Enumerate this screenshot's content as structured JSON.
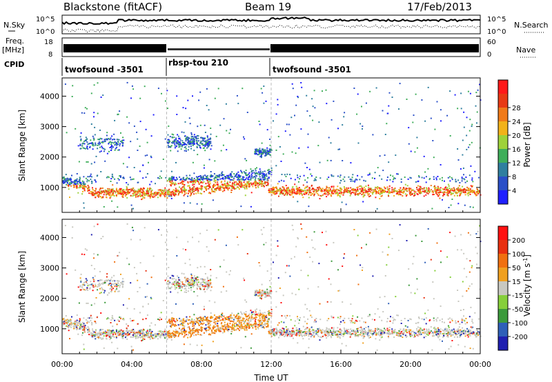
{
  "header": {
    "title": "Blackstone (fitACF)",
    "beam": "Beam 19",
    "date": "17/Feb/2013"
  },
  "side_labels": {
    "nsky": "N.Sky",
    "nsearch": "N.Search",
    "freq": "Freq.",
    "freq_unit": "[MHz]",
    "nave": "Nave",
    "cpid": "CPID"
  },
  "noise_panel": {
    "left_ticks": [
      "10^5",
      "10^0"
    ],
    "right_ticks": [
      "10^5",
      "10^0"
    ]
  },
  "freq_panel": {
    "left_ticks": [
      "18",
      "8"
    ],
    "right_ticks": [
      "60",
      "0"
    ]
  },
  "cpid_segments": [
    {
      "label": "twofsound -3501",
      "start_hour": 0
    },
    {
      "label": "rbsp-tou 210",
      "start_hour": 6
    },
    {
      "label": "twofsound -3501",
      "start_hour": 12
    }
  ],
  "chart_data": [
    {
      "type": "heatmap",
      "name": "power",
      "ylabel": "Slant Range [km]",
      "xlabel": "",
      "x_range_hours": [
        0,
        24
      ],
      "ylim": [
        180,
        4600
      ],
      "y_ticks": [
        1000,
        2000,
        3000,
        4000
      ],
      "colorbar_label": "Power [dB]",
      "colorbar_ticks": [
        "4",
        "8",
        "12",
        "16",
        "20",
        "24",
        "28"
      ],
      "colorbar_colors": [
        "#1f1fff",
        "#2a4fc8",
        "#2f7f9f",
        "#3fae5a",
        "#9ed23a",
        "#f2b21a",
        "#f07a18",
        "#e83a14",
        "#ff1a1a"
      ]
    },
    {
      "type": "heatmap",
      "name": "velocity",
      "ylabel": "Slant Range [km]",
      "xlabel": "Time UT",
      "x_range_hours": [
        0,
        24
      ],
      "x_ticks": [
        "00:00",
        "04:00",
        "08:00",
        "12:00",
        "16:00",
        "20:00",
        "00:00"
      ],
      "ylim": [
        180,
        4600
      ],
      "y_ticks": [
        1000,
        2000,
        3000,
        4000
      ],
      "colorbar_label": "Velocity [m s^-1]",
      "colorbar_ticks": [
        "200",
        "100",
        "50",
        "15",
        "-15",
        "-50",
        "-100",
        "-200"
      ],
      "colorbar_colors": [
        "#1f1fb0",
        "#2e5fb8",
        "#3c9a3c",
        "#86cf3a",
        "#c8c8c0",
        "#f0a020",
        "#f07010",
        "#e83010",
        "#ff1010"
      ]
    }
  ]
}
